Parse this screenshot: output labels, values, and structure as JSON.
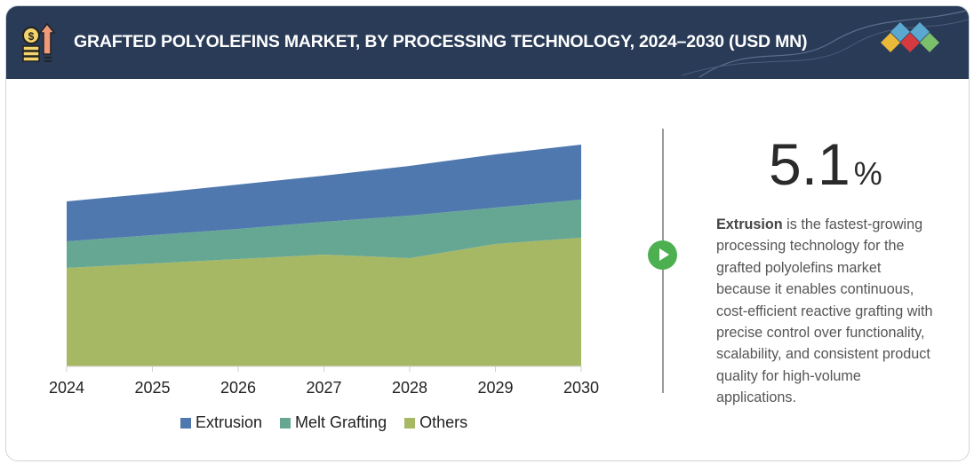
{
  "header": {
    "title": "GRAFTED POLYOLEFINS MARKET, BY PROCESSING TECHNOLOGY, 2024–2030 (USD MN)",
    "icon": "money-growth-icon",
    "logo": "diamond-logo"
  },
  "highlight": {
    "value": "5.1",
    "unit": "%",
    "lead": "Extrusion",
    "text": " is the fastest-growing processing technology for the grafted polyolefins market because it enables continuous, cost-efficient reactive grafting with precise control over functionality, scalability, and consistent product quality for high-volume applications.",
    "icon": "play-icon",
    "accent": "#4caf50"
  },
  "chart_data": {
    "type": "area",
    "stacked": true,
    "title": "GRAFTED POLYOLEFINS MARKET, BY PROCESSING TECHNOLOGY, 2024–2030 (USD MN)",
    "categories": [
      "2024",
      "2025",
      "2026",
      "2027",
      "2028",
      "2029",
      "2030"
    ],
    "series": [
      {
        "name": "Others",
        "color": "#a7b864",
        "values": [
          111,
          116,
          121,
          126,
          122,
          138,
          145
        ]
      },
      {
        "name": "Melt Grafting",
        "color": "#66a793",
        "values": [
          30,
          32,
          34,
          37,
          48,
          41,
          43
        ]
      },
      {
        "name": "Extrusion",
        "color": "#4f78ae",
        "values": [
          45,
          47,
          50,
          52,
          56,
          60,
          62
        ]
      }
    ],
    "legend_order": [
      "Extrusion",
      "Melt Grafting",
      "Others"
    ],
    "ylim": [
      0,
      250
    ],
    "y_axis_shown": false,
    "grid": false,
    "legend_position": "bottom"
  }
}
